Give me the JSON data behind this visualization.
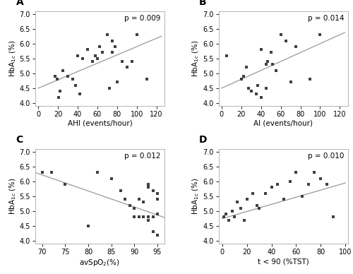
{
  "panel_A": {
    "label": "A",
    "x": [
      17,
      19,
      21,
      22,
      25,
      30,
      35,
      38,
      40,
      42,
      45,
      50,
      55,
      58,
      60,
      62,
      65,
      70,
      72,
      75,
      75,
      78,
      80,
      85,
      90,
      95,
      100,
      110
    ],
    "y": [
      4.9,
      4.8,
      4.2,
      4.4,
      5.1,
      4.9,
      4.8,
      4.6,
      5.6,
      4.3,
      5.5,
      5.8,
      5.4,
      5.6,
      5.5,
      5.9,
      5.7,
      6.3,
      4.5,
      6.1,
      5.7,
      5.9,
      4.7,
      5.4,
      5.2,
      5.4,
      6.3,
      4.8
    ],
    "p_text": "p = 0.009",
    "xlabel": "AHI (events/hour)",
    "ylabel": "HbA$_{1c}$ (%)",
    "xlim": [
      -3,
      128
    ],
    "ylim": [
      3.9,
      7.1
    ],
    "xticks": [
      0.0,
      20.0,
      40.0,
      60.0,
      80.0,
      100.0,
      120.0
    ],
    "yticks": [
      4.0,
      4.5,
      5.0,
      5.5,
      6.0,
      6.5,
      7.0
    ],
    "line_x": [
      0,
      125
    ],
    "line_y": [
      4.5,
      6.25
    ]
  },
  "panel_B": {
    "label": "B",
    "x": [
      5,
      20,
      22,
      25,
      27,
      30,
      35,
      37,
      40,
      40,
      45,
      45,
      47,
      50,
      52,
      55,
      60,
      65,
      70,
      75,
      90,
      100
    ],
    "y": [
      5.6,
      4.8,
      4.9,
      5.2,
      4.5,
      4.4,
      4.3,
      4.6,
      5.8,
      4.2,
      5.3,
      4.5,
      5.4,
      5.7,
      5.3,
      5.1,
      6.3,
      6.1,
      4.7,
      5.9,
      4.8,
      6.3
    ],
    "p_text": "p = 0.014",
    "xlabel": "AI (events/hour)",
    "ylabel": "HbA$_{1c}$ (%)",
    "xlim": [
      -3,
      128
    ],
    "ylim": [
      3.9,
      7.1
    ],
    "xticks": [
      0.0,
      20.0,
      40.0,
      60.0,
      80.0,
      100.0,
      120.0
    ],
    "yticks": [
      4.0,
      4.5,
      5.0,
      5.5,
      6.0,
      6.5,
      7.0
    ],
    "line_x": [
      0,
      125
    ],
    "line_y": [
      4.5,
      6.375
    ]
  },
  "panel_C": {
    "label": "C",
    "x": [
      70,
      72,
      75,
      80,
      82,
      85,
      87,
      88,
      89,
      90,
      90,
      91,
      91,
      92,
      92,
      93,
      93,
      93,
      93,
      94,
      94,
      94,
      95,
      95,
      95,
      95
    ],
    "y": [
      6.3,
      6.3,
      5.9,
      4.5,
      6.3,
      6.1,
      5.7,
      5.4,
      5.2,
      5.1,
      4.8,
      5.4,
      4.8,
      5.3,
      4.8,
      5.9,
      5.8,
      4.8,
      4.7,
      5.7,
      4.3,
      4.8,
      5.4,
      4.9,
      5.6,
      4.2
    ],
    "p_text": "p = 0.012",
    "xlabel": "avSpO$_{2}$(%)",
    "ylabel": "HbA$_{1c}$ (%)",
    "xlim": [
      68.5,
      96.5
    ],
    "ylim": [
      3.9,
      7.1
    ],
    "xticks": [
      70.0,
      75.0,
      80.0,
      85.0,
      90.0,
      95.0
    ],
    "yticks": [
      4.0,
      4.5,
      5.0,
      5.5,
      6.0,
      6.5,
      7.0
    ],
    "line_x": [
      68,
      97
    ],
    "line_y": [
      6.328,
      4.762
    ]
  },
  "panel_D": {
    "label": "D",
    "x": [
      1,
      3,
      5,
      8,
      10,
      12,
      15,
      18,
      20,
      25,
      28,
      30,
      35,
      40,
      45,
      50,
      55,
      60,
      65,
      70,
      75,
      80,
      85,
      90
    ],
    "y": [
      4.8,
      4.9,
      4.7,
      5.0,
      4.8,
      5.3,
      5.1,
      4.7,
      5.4,
      5.6,
      5.2,
      5.1,
      5.6,
      5.8,
      5.9,
      5.4,
      6.0,
      6.3,
      5.5,
      5.9,
      6.3,
      6.1,
      5.9,
      4.8
    ],
    "p_text": "p = 0.010",
    "xlabel": "t < 90 (%TST)",
    "ylabel": "HbA$_{1c}$ (%)",
    "xlim": [
      -3,
      102
    ],
    "ylim": [
      3.9,
      7.1
    ],
    "xticks": [
      0,
      20,
      40,
      60,
      80,
      100
    ],
    "yticks": [
      4.0,
      4.5,
      5.0,
      5.5,
      6.0,
      6.5,
      7.0
    ],
    "line_x": [
      0,
      100
    ],
    "line_y": [
      4.75,
      5.95
    ]
  },
  "scatter_color": "#404040",
  "line_color": "#999999",
  "marker_size": 5,
  "label_fontsize": 7.5,
  "tick_fontsize": 7,
  "panel_label_fontsize": 10,
  "p_fontsize": 7.5
}
